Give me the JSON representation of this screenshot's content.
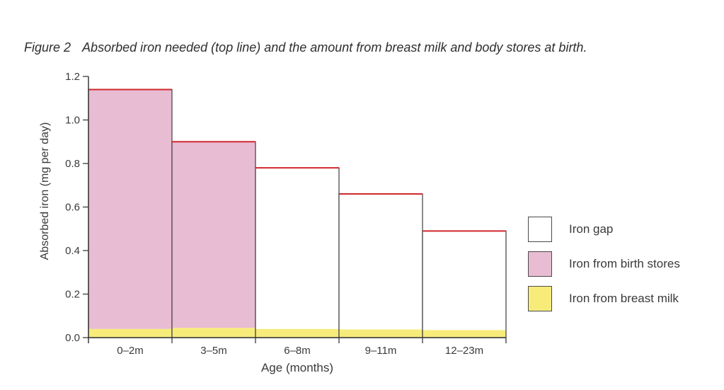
{
  "figure": {
    "number": "Figure 2",
    "caption": "Absorbed iron needed (top line) and the amount from breast milk and body stores at birth."
  },
  "chart_data": {
    "type": "bar",
    "stacked": true,
    "title": "Figure 2   Absorbed iron needed (top line) and the amount from breast milk and body stores at birth.",
    "xlabel": "Age (months)",
    "ylabel": "Absorbed iron (mg per day)",
    "ylim": [
      0,
      1.2
    ],
    "yticks": [
      "0.0",
      "0.2",
      "0.4",
      "0.6",
      "0.8",
      "1.0",
      "1.2"
    ],
    "categories": [
      "0–2m",
      "3–5m",
      "6–8m",
      "9–11m",
      "12–23m"
    ],
    "series": [
      {
        "name": "Iron from breast milk",
        "color": "#f7ec7a",
        "values": [
          0.04,
          0.045,
          0.04,
          0.038,
          0.035
        ]
      },
      {
        "name": "Iron from birth stores",
        "color": "#e8bcd3",
        "values": [
          1.1,
          0.855,
          0.0,
          0.0,
          0.0
        ]
      },
      {
        "name": "Iron gap",
        "color": "#ffffff",
        "values": [
          0.0,
          0.0,
          0.74,
          0.622,
          0.455
        ]
      }
    ],
    "needed_line": {
      "color": "#d0282d",
      "values": [
        1.14,
        0.9,
        0.78,
        0.66,
        0.49
      ]
    },
    "grid": false,
    "legend_position": "right"
  },
  "legend": {
    "items": [
      {
        "label": "Iron gap",
        "color": "#ffffff"
      },
      {
        "label": "Iron from birth stores",
        "color": "#e8bcd3"
      },
      {
        "label": "Iron from breast milk",
        "color": "#f7ec7a"
      }
    ]
  }
}
